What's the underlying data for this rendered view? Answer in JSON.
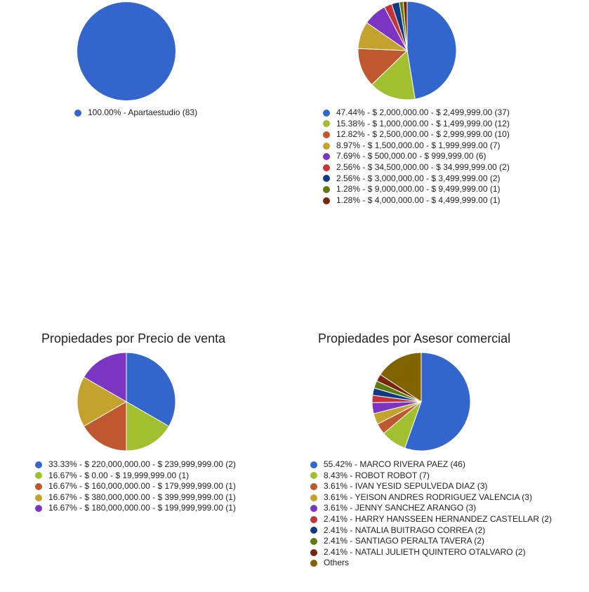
{
  "chart_data": [
    {
      "type": "pie",
      "title": "",
      "slices": [
        {
          "label": "100.00% - Apartaestudio (83)",
          "value": 83,
          "color": "#3366cc"
        }
      ]
    },
    {
      "type": "pie",
      "title": "",
      "slices": [
        {
          "label": "47.44% - $ 2,000,000.00 - $ 2,499,999.00 (37)",
          "value": 37,
          "color": "#3366cc"
        },
        {
          "label": "15.38% - $ 1,000,000.00 - $ 1,499,999.00 (12)",
          "value": 12,
          "color": "#a1bf2e"
        },
        {
          "label": "12.82% - $ 2,500,000.00 - $ 2,999,999.00 (10)",
          "value": 10,
          "color": "#c0582f"
        },
        {
          "label": "8.97% - $ 1,500,000.00 - $ 1,999,999.00 (7)",
          "value": 7,
          "color": "#c4a22e"
        },
        {
          "label": "7.69% - $ 500,000.00 - $ 999,999.00 (6)",
          "value": 6,
          "color": "#7b35c2"
        },
        {
          "label": "2.56% - $ 34,500,000.00 - $ 34,999,999.00 (2)",
          "value": 2,
          "color": "#c63237"
        },
        {
          "label": "2.56% - $ 3,000,000.00 - $ 3,499,999.00 (2)",
          "value": 2,
          "color": "#0e3b84"
        },
        {
          "label": "1.28% - $ 9,000,000.00 - $ 9,499,999.00 (1)",
          "value": 1,
          "color": "#5d7b0e"
        },
        {
          "label": "1.28% - $ 4,000,000.00 - $ 4,499,999.00 (1)",
          "value": 1,
          "color": "#7a260d"
        }
      ]
    },
    {
      "type": "pie",
      "title": "Propiedades por Precio de venta",
      "slices": [
        {
          "label": "33.33% - $ 220,000,000.00 - $ 239,999,999.00 (2)",
          "value": 2,
          "color": "#3366cc"
        },
        {
          "label": "16.67% - $ 0.00 - $ 19,999,999.00 (1)",
          "value": 1,
          "color": "#a1bf2e"
        },
        {
          "label": "16.67% - $ 160,000,000.00 - $ 179,999,999.00 (1)",
          "value": 1,
          "color": "#c0582f"
        },
        {
          "label": "16.67% - $ 380,000,000.00 - $ 399,999,999.00 (1)",
          "value": 1,
          "color": "#c4a22e"
        },
        {
          "label": "16.67% - $ 180,000,000.00 - $ 199,999,999.00 (1)",
          "value": 1,
          "color": "#7b35c2"
        }
      ]
    },
    {
      "type": "pie",
      "title": "Propiedades por Asesor comercial",
      "slices": [
        {
          "label": "55.42% - MARCO RIVERA PAEZ (46)",
          "value": 46,
          "color": "#3366cc"
        },
        {
          "label": "8.43% - ROBOT ROBOT (7)",
          "value": 7,
          "color": "#a1bf2e"
        },
        {
          "label": "3.61% - IVAN YESID SEPULVEDA DIAZ (3)",
          "value": 3,
          "color": "#c0582f"
        },
        {
          "label": "3.61% - YEISON ANDRES RODRIGUEZ VALENCIA (3)",
          "value": 3,
          "color": "#c4a22e"
        },
        {
          "label": "3.61% - JENNY SANCHEZ ARANGO (3)",
          "value": 3,
          "color": "#7b35c2"
        },
        {
          "label": "2.41% - HARRY HANSSEEN HERNANDEZ CASTELLAR (2)",
          "value": 2,
          "color": "#c63237"
        },
        {
          "label": "2.41% - NATALIA BUITRAGO CORREA (2)",
          "value": 2,
          "color": "#0e3b84"
        },
        {
          "label": "2.41% - SANTIAGO PERALTA TAVERA (2)",
          "value": 2,
          "color": "#5d7b0e"
        },
        {
          "label": "2.41% - NATALI JULIETH QUINTERO OTALVARO (2)",
          "value": 2,
          "color": "#7a260d"
        },
        {
          "label": "Others",
          "value": 13,
          "color": "#7f6400"
        }
      ]
    }
  ]
}
